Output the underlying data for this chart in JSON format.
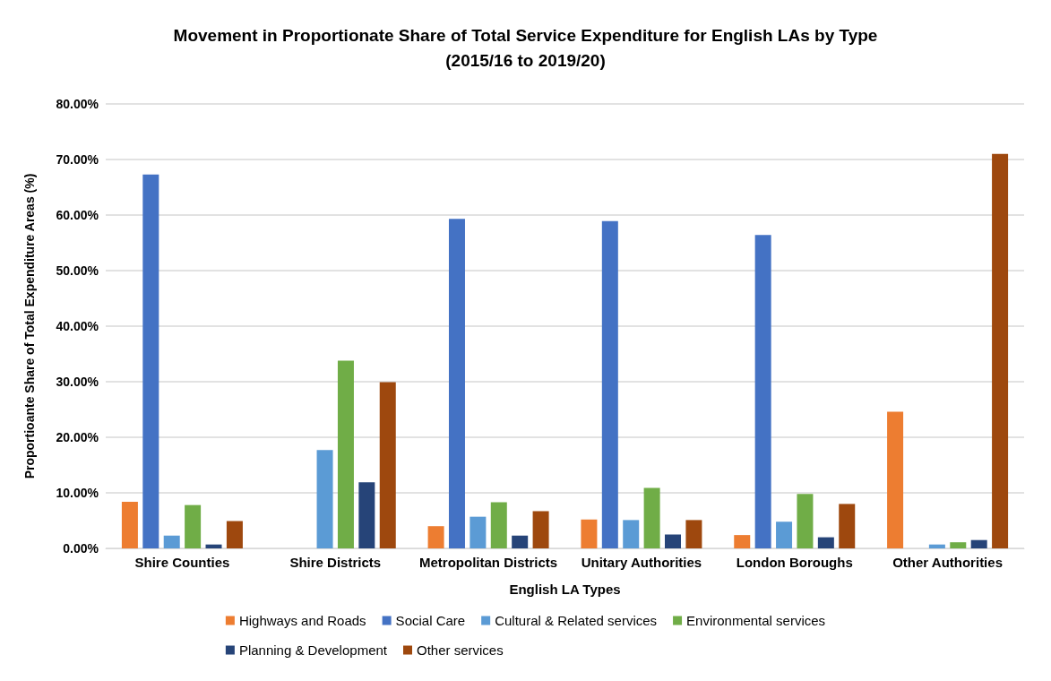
{
  "chart_data": {
    "type": "bar",
    "title": "Movement in Proportionate Share of Total Service Expenditure for English LAs by Type\n(2015/16 to 2019/20)",
    "xlabel": "English LA Types",
    "ylabel": "Proportioante Share of Total Expenditure Areas (%)",
    "categories": [
      "Shire Counties",
      "Shire Districts",
      "Metropolitan Districts",
      "Unitary Authorities",
      "London Boroughs",
      "Other Authorities"
    ],
    "series": [
      {
        "name": "Highways and Roads",
        "color": "#ed7d31",
        "values": [
          8.4,
          null,
          4.0,
          5.2,
          2.4,
          24.6
        ]
      },
      {
        "name": "Social Care",
        "color": "#4472c4",
        "values": [
          67.3,
          null,
          59.3,
          58.9,
          56.4,
          null
        ]
      },
      {
        "name": "Cultural & Related services",
        "color": "#5b9bd5",
        "values": [
          2.3,
          17.7,
          5.7,
          5.1,
          4.8,
          0.7
        ]
      },
      {
        "name": "Environmental services",
        "color": "#70ad47",
        "values": [
          7.8,
          33.8,
          8.3,
          10.9,
          9.8,
          1.1
        ]
      },
      {
        "name": "Planning & Development",
        "color": "#264478",
        "values": [
          0.7,
          11.9,
          2.3,
          2.5,
          2.0,
          1.5
        ]
      },
      {
        "name": "Other services",
        "color": "#9e480e",
        "values": [
          4.9,
          29.9,
          6.7,
          5.1,
          8.0,
          71.0
        ]
      }
    ],
    "ylim": [
      0,
      80
    ],
    "yticks": [
      {
        "value": 0,
        "label": "0.00%"
      },
      {
        "value": 10,
        "label": "10.00%"
      },
      {
        "value": 20,
        "label": "20.00%"
      },
      {
        "value": 30,
        "label": "30.00%"
      },
      {
        "value": 40,
        "label": "40.00%"
      },
      {
        "value": 50,
        "label": "50.00%"
      },
      {
        "value": 60,
        "label": "60.00%"
      },
      {
        "value": 70,
        "label": "70.00%"
      },
      {
        "value": 80,
        "label": "80.00%"
      }
    ],
    "grid": "y",
    "legend": "bottom"
  }
}
